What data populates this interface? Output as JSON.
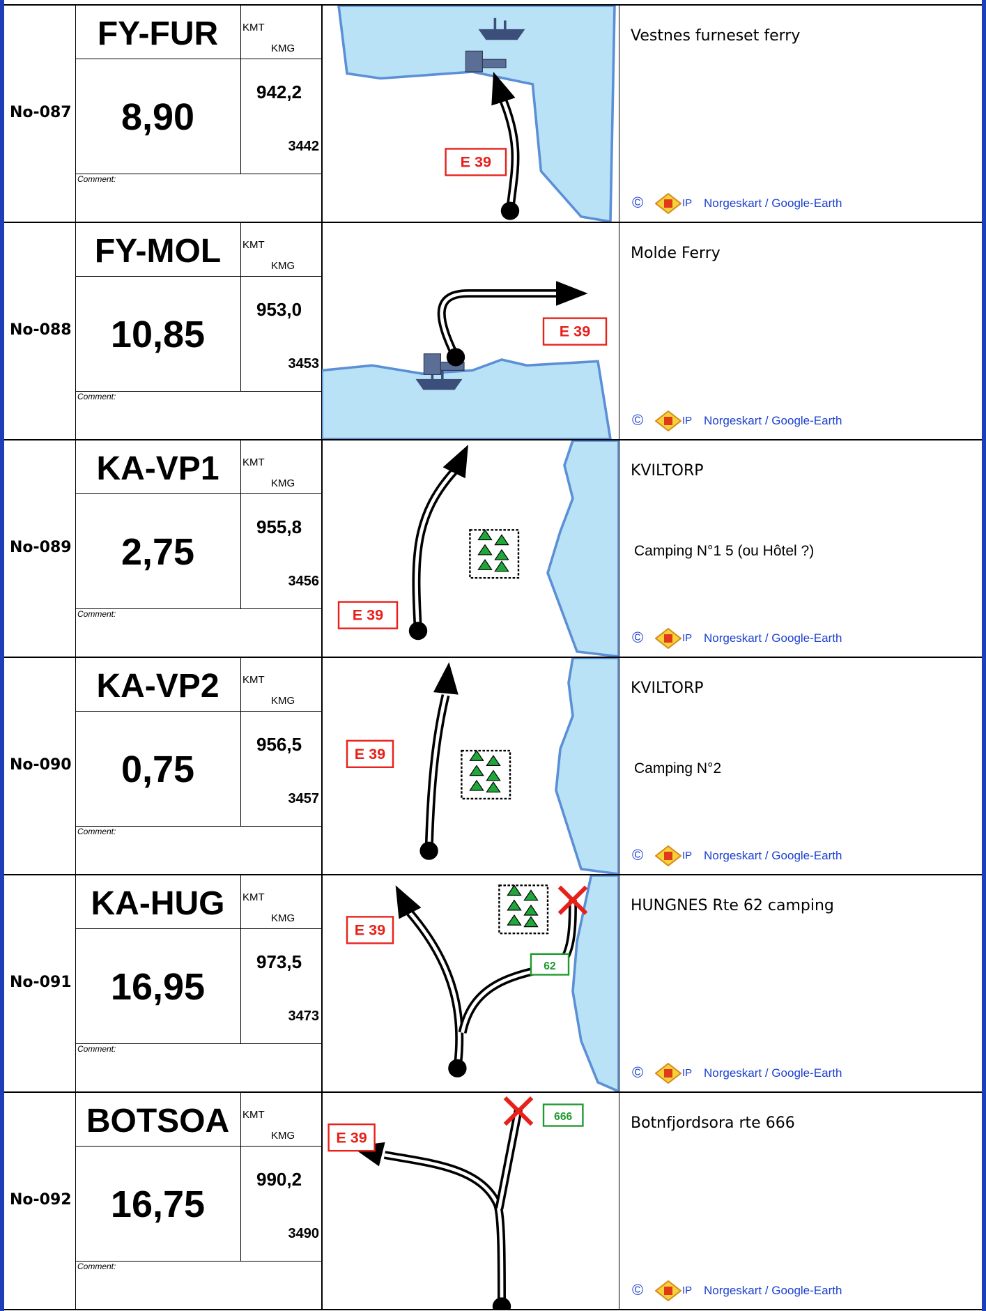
{
  "rows": [
    {
      "number": "No-087",
      "code": "FY-FUR",
      "kmt_label": "KMT",
      "kmg_label": "KMG",
      "distance": "8,90",
      "kmt": "942,2",
      "kmg": "3442",
      "comment_label": "Comment:",
      "road_signs": [
        "E 39"
      ],
      "description": "Vestnes furneset ferry",
      "copyright": "©",
      "logo_text": "IP",
      "credit": "Norgeskart / Google-Earth"
    },
    {
      "number": "No-088",
      "code": "FY-MOL",
      "kmt_label": "KMT",
      "kmg_label": "KMG",
      "distance": "10,85",
      "kmt": "953,0",
      "kmg": "3453",
      "comment_label": "Comment:",
      "road_signs": [
        "E 39"
      ],
      "description": "Molde Ferry",
      "copyright": "©",
      "logo_text": "IP",
      "credit": "Norgeskart / Google-Earth"
    },
    {
      "number": "No-089",
      "code": "KA-VP1",
      "kmt_label": "KMT",
      "kmg_label": "KMG",
      "distance": "2,75",
      "kmt": "955,8",
      "kmg": "3456",
      "comment_label": "Comment:",
      "road_signs": [
        "E 39"
      ],
      "description": "KVILTORP",
      "note": "Camping N°1 5 (ou Hôtel  ?)",
      "copyright": "©",
      "logo_text": "IP",
      "credit": "Norgeskart / Google-Earth"
    },
    {
      "number": "No-090",
      "code": "KA-VP2",
      "kmt_label": "KMT",
      "kmg_label": "KMG",
      "distance": "0,75",
      "kmt": "956,5",
      "kmg": "3457",
      "comment_label": "Comment:",
      "road_signs": [
        "E 39"
      ],
      "description": "KVILTORP",
      "note": "Camping N°2",
      "copyright": "©",
      "logo_text": "IP",
      "credit": "Norgeskart / Google-Earth"
    },
    {
      "number": "No-091",
      "code": "KA-HUG",
      "kmt_label": "KMT",
      "kmg_label": "KMG",
      "distance": "16,95",
      "kmt": "973,5",
      "kmg": "3473",
      "comment_label": "Comment:",
      "road_signs": [
        "E 39",
        "62"
      ],
      "description": "HUNGNES Rte 62 camping",
      "copyright": "©",
      "logo_text": "IP",
      "credit": "Norgeskart / Google-Earth"
    },
    {
      "number": "No-092",
      "code": "BOTSOA",
      "kmt_label": "KMT",
      "kmg_label": "KMG",
      "distance": "16,75",
      "kmt": "990,2",
      "kmg": "3490",
      "comment_label": "Comment:",
      "road_signs": [
        "E 39",
        "666"
      ],
      "description": "Botnfjordsora rte 666",
      "copyright": "©",
      "logo_text": "IP",
      "credit": "Norgeskart / Google-Earth"
    }
  ]
}
